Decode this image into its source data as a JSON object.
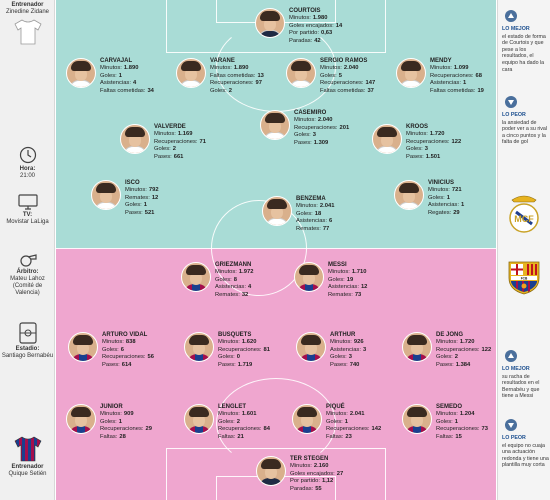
{
  "left_column": {
    "coach_top": {
      "title": "Entrenador",
      "name": "Zinedine Zidane"
    },
    "time": {
      "title": "Hora:",
      "value": "21:00"
    },
    "tv": {
      "title": "TV:",
      "value": "Movistar LaLiga"
    },
    "referee": {
      "title": "Árbitro:",
      "value": "Mateu Lahoz (Comité de Valencia)"
    },
    "stadium": {
      "title": "Estadio:",
      "value": "Santiago Bernabéu"
    },
    "coach_bottom": {
      "title": "Entrenador",
      "name": "Quique Setién"
    }
  },
  "right_column": {
    "top_best": {
      "title": "LO MEJOR",
      "text": "el estado de forma de Courtois y que pese a los resultados, el equipo ha dado la cara"
    },
    "top_worst": {
      "title": "LO PEOR",
      "text": "la ansiedad de poder ver a su rival a cinco puntos y la falta de gol"
    },
    "bottom_best": {
      "title": "LO MEJOR",
      "text": "su racha de resultados en el Bernabéu y que tiene a Messi"
    },
    "bottom_worst": {
      "title": "LO PEOR",
      "text": "el equipo no cuaja una actuación redonda y tiene una plantilla muy corta"
    }
  },
  "colors": {
    "pitch_top": "#a9dcd6",
    "pitch_bottom": "#efa6cf",
    "accent": "#1c4f8f",
    "real_madrid": "#ffffff",
    "barcelona_blue": "#1a3f8f",
    "barcelona_red": "#a40e4c"
  },
  "players": [
    {
      "team": "rm",
      "name": "COURTOIS",
      "gk": true,
      "stats": [
        [
          "Goles encajados:",
          "14"
        ],
        [
          "Por partido:",
          "0,63"
        ],
        [
          "Paradas:",
          "42"
        ]
      ],
      "minutes": [
        "Minutos:",
        "1.980"
      ]
    },
    {
      "team": "rm",
      "name": "CARVAJAL",
      "stats": [
        [
          "Minutos:",
          "1.890"
        ],
        [
          "Goles:",
          "1"
        ],
        [
          "Asistencias:",
          "4"
        ],
        [
          "Faltas cometidas:",
          "34"
        ]
      ]
    },
    {
      "team": "rm",
      "name": "VARANE",
      "stats": [
        [
          "Minutos:",
          "1.890"
        ],
        [
          "Faltas cometidas:",
          "13"
        ],
        [
          "Recuperaciones:",
          "97"
        ],
        [
          "Goles:",
          "2"
        ]
      ]
    },
    {
      "team": "rm",
      "name": "SERGIO RAMOS",
      "stats": [
        [
          "Minutos:",
          "2.040"
        ],
        [
          "Goles:",
          "5"
        ],
        [
          "Recuperaciones:",
          "147"
        ],
        [
          "Faltas cometidas:",
          "37"
        ]
      ]
    },
    {
      "team": "rm",
      "name": "MENDY",
      "stats": [
        [
          "Minutos:",
          "1.099"
        ],
        [
          "Recuperaciones:",
          "68"
        ],
        [
          "Asistencias:",
          "1"
        ],
        [
          "Faltas cometidas:",
          "19"
        ]
      ]
    },
    {
      "team": "rm",
      "name": "CASEMIRO",
      "stats": [
        [
          "Minutos:",
          "2.040"
        ],
        [
          "Recuperaciones:",
          "201"
        ],
        [
          "Goles:",
          "3"
        ],
        [
          "Pases:",
          "1.309"
        ]
      ]
    },
    {
      "team": "rm",
      "name": "VALVERDE",
      "stats": [
        [
          "Minutos:",
          "1.169"
        ],
        [
          "Recuperaciones:",
          "71"
        ],
        [
          "Goles:",
          "2"
        ],
        [
          "Pases:",
          "661"
        ]
      ]
    },
    {
      "team": "rm",
      "name": "KROOS",
      "stats": [
        [
          "Minutos:",
          "1.720"
        ],
        [
          "Recuperaciones:",
          "122"
        ],
        [
          "Goles:",
          "3"
        ],
        [
          "Pases:",
          "1.501"
        ]
      ]
    },
    {
      "team": "rm",
      "name": "ISCO",
      "stats": [
        [
          "Minutos:",
          "792"
        ],
        [
          "Remates:",
          "12"
        ],
        [
          "Goles:",
          "1"
        ],
        [
          "Pases:",
          "521"
        ]
      ]
    },
    {
      "team": "rm",
      "name": "VINICIUS",
      "stats": [
        [
          "Minutos:",
          "721"
        ],
        [
          "Goles:",
          "1"
        ],
        [
          "Asistencias:",
          "1"
        ],
        [
          "Regates:",
          "29"
        ]
      ]
    },
    {
      "team": "rm",
      "name": "BENZEMA",
      "stats": [
        [
          "Minutos:",
          "2.041"
        ],
        [
          "Goles:",
          "18"
        ],
        [
          "Asistencias:",
          "6"
        ],
        [
          "Remates:",
          "77"
        ]
      ]
    },
    {
      "team": "fcb",
      "name": "GRIEZMANN",
      "stats": [
        [
          "Minutos:",
          "1.972"
        ],
        [
          "Goles:",
          "8"
        ],
        [
          "Asistencias:",
          "4"
        ],
        [
          "Remates:",
          "32"
        ]
      ]
    },
    {
      "team": "fcb",
      "name": "MESSI",
      "stats": [
        [
          "Minutos:",
          "1.710"
        ],
        [
          "Goles:",
          "19"
        ],
        [
          "Asistencias:",
          "12"
        ],
        [
          "Remates:",
          "73"
        ]
      ]
    },
    {
      "team": "fcb",
      "name": "ARTURO VIDAL",
      "stats": [
        [
          "Minutos:",
          "838"
        ],
        [
          "Goles:",
          "6"
        ],
        [
          "Recuperaciones:",
          "56"
        ],
        [
          "Pases:",
          "614"
        ]
      ]
    },
    {
      "team": "fcb",
      "name": "BUSQUETS",
      "stats": [
        [
          "Minutos:",
          "1.620"
        ],
        [
          "Recuperaciones:",
          "81"
        ],
        [
          "Goles:",
          "0"
        ],
        [
          "Pases:",
          "1.719"
        ]
      ]
    },
    {
      "team": "fcb",
      "name": "ARTHUR",
      "stats": [
        [
          "Minutos:",
          "926"
        ],
        [
          "Asistencias:",
          "3"
        ],
        [
          "Goles:",
          "3"
        ],
        [
          "Pases:",
          "740"
        ]
      ]
    },
    {
      "team": "fcb",
      "name": "DE JONG",
      "stats": [
        [
          "Minutos:",
          "1.720"
        ],
        [
          "Recuperaciones:",
          "122"
        ],
        [
          "Goles:",
          "2"
        ],
        [
          "Pases:",
          "1.384"
        ]
      ]
    },
    {
      "team": "fcb",
      "name": "JUNIOR",
      "stats": [
        [
          "Minutos:",
          "909"
        ],
        [
          "Goles:",
          "1"
        ],
        [
          "Recuperaciones:",
          "29"
        ],
        [
          "Faltas:",
          "28"
        ]
      ]
    },
    {
      "team": "fcb",
      "name": "LENGLET",
      "stats": [
        [
          "Minutos:",
          "1.601"
        ],
        [
          "Goles:",
          "2"
        ],
        [
          "Recuperaciones:",
          "84"
        ],
        [
          "Faltas:",
          "21"
        ]
      ]
    },
    {
      "team": "fcb",
      "name": "PIQUÉ",
      "stats": [
        [
          "Minutos:",
          "2.041"
        ],
        [
          "Goles:",
          "1"
        ],
        [
          "Recuperaciones:",
          "142"
        ],
        [
          "Faltas:",
          "23"
        ]
      ]
    },
    {
      "team": "fcb",
      "name": "SEMEDO",
      "stats": [
        [
          "Minutos:",
          "1.204"
        ],
        [
          "Goles:",
          "1"
        ],
        [
          "Recuperaciones:",
          "73"
        ],
        [
          "Faltas:",
          "15"
        ]
      ]
    },
    {
      "team": "fcb",
      "name": "TER STEGEN",
      "gk": true,
      "stats": [
        [
          "Minutos:",
          "2.160"
        ],
        [
          "Goles encajados:",
          "27"
        ],
        [
          "Por partido:",
          "1,12"
        ],
        [
          "Paradas:",
          "55"
        ]
      ]
    }
  ]
}
